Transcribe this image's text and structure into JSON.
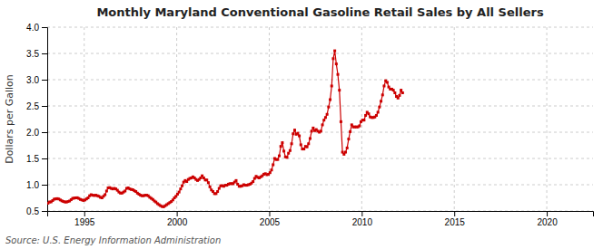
{
  "chart_data": {
    "type": "line",
    "title": "Monthly Maryland Conventional Gasoline Retail Sales by All Sellers",
    "ylabel": "Dollars per Gallon",
    "annotation": "Source: U.S. Energy Information Administration",
    "color": "#cc0000",
    "marker": "square",
    "grid": true,
    "xlim": [
      1993.0,
      2022.5
    ],
    "ylim": [
      0.5,
      4.0
    ],
    "xticks": [
      1995,
      2000,
      2005,
      2010,
      2015,
      2020
    ],
    "yticks": [
      0.5,
      {
        "value": 1.0,
        "label": "1.0"
      },
      1.5,
      {
        "value": 2.0,
        "label": "2.0"
      },
      2.5,
      {
        "value": 3.0,
        "label": "3.0"
      },
      3.5,
      {
        "value": 4.0,
        "label": "4.0"
      }
    ],
    "x": [
      1993.0416666666667,
      1993.125,
      1993.2083333333333,
      1993.2916666666667,
      1993.375,
      1993.4583333333333,
      1993.5416666666667,
      1993.625,
      1993.7083333333333,
      1993.7916666666667,
      1993.875,
      1993.9583333333333,
      1994.0416666666667,
      1994.125,
      1994.2083333333333,
      1994.2916666666667,
      1994.375,
      1994.4583333333333,
      1994.5416666666667,
      1994.625,
      1994.7083333333333,
      1994.7916666666667,
      1994.875,
      1994.9583333333333,
      1995.0416666666667,
      1995.125,
      1995.2083333333333,
      1995.2916666666667,
      1995.375,
      1995.4583333333333,
      1995.5416666666667,
      1995.625,
      1995.7083333333333,
      1995.7916666666667,
      1995.875,
      1995.9583333333333,
      1996.0416666666667,
      1996.125,
      1996.2083333333333,
      1996.2916666666667,
      1996.375,
      1996.4583333333333,
      1996.5416666666667,
      1996.625,
      1996.7083333333333,
      1996.7916666666667,
      1996.875,
      1996.9583333333333,
      1997.0416666666667,
      1997.125,
      1997.2083333333333,
      1997.2916666666667,
      1997.375,
      1997.4583333333333,
      1997.5416666666667,
      1997.625,
      1997.7083333333333,
      1997.7916666666667,
      1997.875,
      1997.9583333333333,
      1998.0416666666667,
      1998.125,
      1998.2083333333333,
      1998.2916666666667,
      1998.375,
      1998.4583333333333,
      1998.5416666666667,
      1998.625,
      1998.7083333333333,
      1998.7916666666667,
      1998.875,
      1998.9583333333333,
      1999.0416666666667,
      1999.125,
      1999.2083333333333,
      1999.2916666666667,
      1999.375,
      1999.4583333333333,
      1999.5416666666667,
      1999.625,
      1999.7083333333333,
      1999.7916666666667,
      1999.875,
      1999.9583333333333,
      2000.0416666666667,
      2000.125,
      2000.2083333333333,
      2000.2916666666667,
      2000.375,
      2000.4583333333333,
      2000.5416666666667,
      2000.625,
      2000.7083333333333,
      2000.7916666666667,
      2000.875,
      2000.9583333333333,
      2001.0416666666667,
      2001.125,
      2001.2083333333333,
      2001.2916666666667,
      2001.375,
      2001.4583333333333,
      2001.5416666666667,
      2001.625,
      2001.7083333333333,
      2001.7916666666667,
      2001.875,
      2001.9583333333333,
      2002.0416666666667,
      2002.125,
      2002.2083333333333,
      2002.2916666666667,
      2002.375,
      2002.4583333333333,
      2002.5416666666667,
      2002.625,
      2002.7083333333333,
      2002.7916666666667,
      2002.875,
      2002.9583333333333,
      2003.0416666666667,
      2003.125,
      2003.2083333333333,
      2003.2916666666667,
      2003.375,
      2003.4583333333333,
      2003.5416666666667,
      2003.625,
      2003.7083333333333,
      2003.7916666666667,
      2003.875,
      2003.9583333333333,
      2004.0416666666667,
      2004.125,
      2004.2083333333333,
      2004.2916666666667,
      2004.375,
      2004.4583333333333,
      2004.5416666666667,
      2004.625,
      2004.7083333333333,
      2004.7916666666667,
      2004.875,
      2004.9583333333333,
      2005.0416666666667,
      2005.125,
      2005.2083333333333,
      2005.2916666666667,
      2005.375,
      2005.4583333333333,
      2005.5416666666667,
      2005.625,
      2005.7083333333333,
      2005.7916666666667,
      2005.875,
      2005.9583333333333,
      2006.0416666666667,
      2006.125,
      2006.2083333333333,
      2006.2916666666667,
      2006.375,
      2006.4583333333333,
      2006.5416666666667,
      2006.625,
      2006.7083333333333,
      2006.7916666666667,
      2006.875,
      2006.9583333333333,
      2007.0416666666667,
      2007.125,
      2007.2083333333333,
      2007.2916666666667,
      2007.375,
      2007.4583333333333,
      2007.5416666666667,
      2007.625,
      2007.7083333333333,
      2007.7916666666667,
      2007.875,
      2007.9583333333333,
      2008.0416666666667,
      2008.125,
      2008.2083333333333,
      2008.2916666666667,
      2008.375,
      2008.4583333333333,
      2008.5416666666667,
      2008.625,
      2008.7083333333333,
      2008.7916666666667,
      2008.875,
      2008.9583333333333,
      2009.0416666666667,
      2009.125,
      2009.2083333333333,
      2009.2916666666667,
      2009.375,
      2009.4583333333333,
      2009.5416666666667,
      2009.625,
      2009.7083333333333,
      2009.7916666666667,
      2009.875,
      2009.9583333333333,
      2010.0416666666667,
      2010.125,
      2010.2083333333333,
      2010.2916666666667,
      2010.375,
      2010.4583333333333,
      2010.5416666666667,
      2010.625,
      2010.7083333333333,
      2010.7916666666667,
      2010.875,
      2010.9583333333333,
      2011.0416666666667,
      2011.125,
      2011.2083333333333,
      2011.2916666666667,
      2011.375,
      2011.4583333333333,
      2011.5416666666667,
      2011.625,
      2011.7083333333333,
      2011.7916666666667,
      2011.875,
      2011.9583333333333,
      2012.0416666666667,
      2012.125,
      2012.2083333333333
    ],
    "values": [
      0.648,
      0.671,
      0.673,
      0.698,
      0.725,
      0.73,
      0.735,
      0.728,
      0.71,
      0.693,
      0.68,
      0.672,
      0.67,
      0.68,
      0.69,
      0.715,
      0.74,
      0.745,
      0.75,
      0.752,
      0.738,
      0.72,
      0.71,
      0.7,
      0.71,
      0.73,
      0.75,
      0.79,
      0.81,
      0.8,
      0.795,
      0.8,
      0.79,
      0.78,
      0.76,
      0.75,
      0.78,
      0.81,
      0.88,
      0.94,
      0.945,
      0.93,
      0.92,
      0.93,
      0.92,
      0.895,
      0.86,
      0.84,
      0.84,
      0.86,
      0.88,
      0.93,
      0.94,
      0.92,
      0.91,
      0.905,
      0.885,
      0.87,
      0.84,
      0.82,
      0.8,
      0.79,
      0.79,
      0.8,
      0.8,
      0.79,
      0.76,
      0.74,
      0.72,
      0.69,
      0.67,
      0.64,
      0.62,
      0.6,
      0.585,
      0.58,
      0.6,
      0.62,
      0.64,
      0.66,
      0.68,
      0.71,
      0.75,
      0.78,
      0.82,
      0.86,
      0.92,
      0.98,
      1.05,
      1.08,
      1.06,
      1.1,
      1.12,
      1.13,
      1.15,
      1.13,
      1.1,
      1.08,
      1.1,
      1.13,
      1.17,
      1.13,
      1.09,
      1.09,
      1.04,
      0.96,
      0.9,
      0.87,
      0.83,
      0.83,
      0.87,
      0.93,
      0.98,
      0.98,
      0.97,
      0.99,
      0.99,
      1.01,
      1.02,
      1.02,
      1.02,
      1.05,
      1.08,
      1.01,
      0.97,
      0.97,
      0.98,
      1.0,
      0.99,
      0.99,
      1.0,
      1.01,
      1.03,
      1.06,
      1.12,
      1.16,
      1.14,
      1.13,
      1.15,
      1.17,
      1.2,
      1.21,
      1.19,
      1.2,
      1.23,
      1.28,
      1.38,
      1.5,
      1.48,
      1.48,
      1.55,
      1.73,
      1.8,
      1.64,
      1.53,
      1.52,
      1.6,
      1.65,
      1.78,
      1.97,
      2.04,
      1.96,
      1.98,
      1.93,
      1.76,
      1.68,
      1.68,
      1.73,
      1.72,
      1.78,
      1.88,
      2.02,
      2.08,
      2.03,
      2.05,
      2.02,
      2.0,
      2.02,
      2.14,
      2.23,
      2.28,
      2.34,
      2.48,
      2.62,
      2.88,
      3.4,
      3.55,
      3.3,
      3.1,
      2.8,
      2.2,
      1.62,
      1.58,
      1.62,
      1.7,
      1.87,
      2.01,
      2.14,
      2.1,
      2.1,
      2.1,
      2.1,
      2.12,
      2.2,
      2.23,
      2.23,
      2.32,
      2.38,
      2.35,
      2.29,
      2.28,
      2.28,
      2.29,
      2.32,
      2.38,
      2.48,
      2.59,
      2.71,
      2.88,
      2.98,
      2.95,
      2.86,
      2.82,
      2.82,
      2.8,
      2.75,
      2.68,
      2.65,
      2.7,
      2.8,
      2.75
    ]
  }
}
